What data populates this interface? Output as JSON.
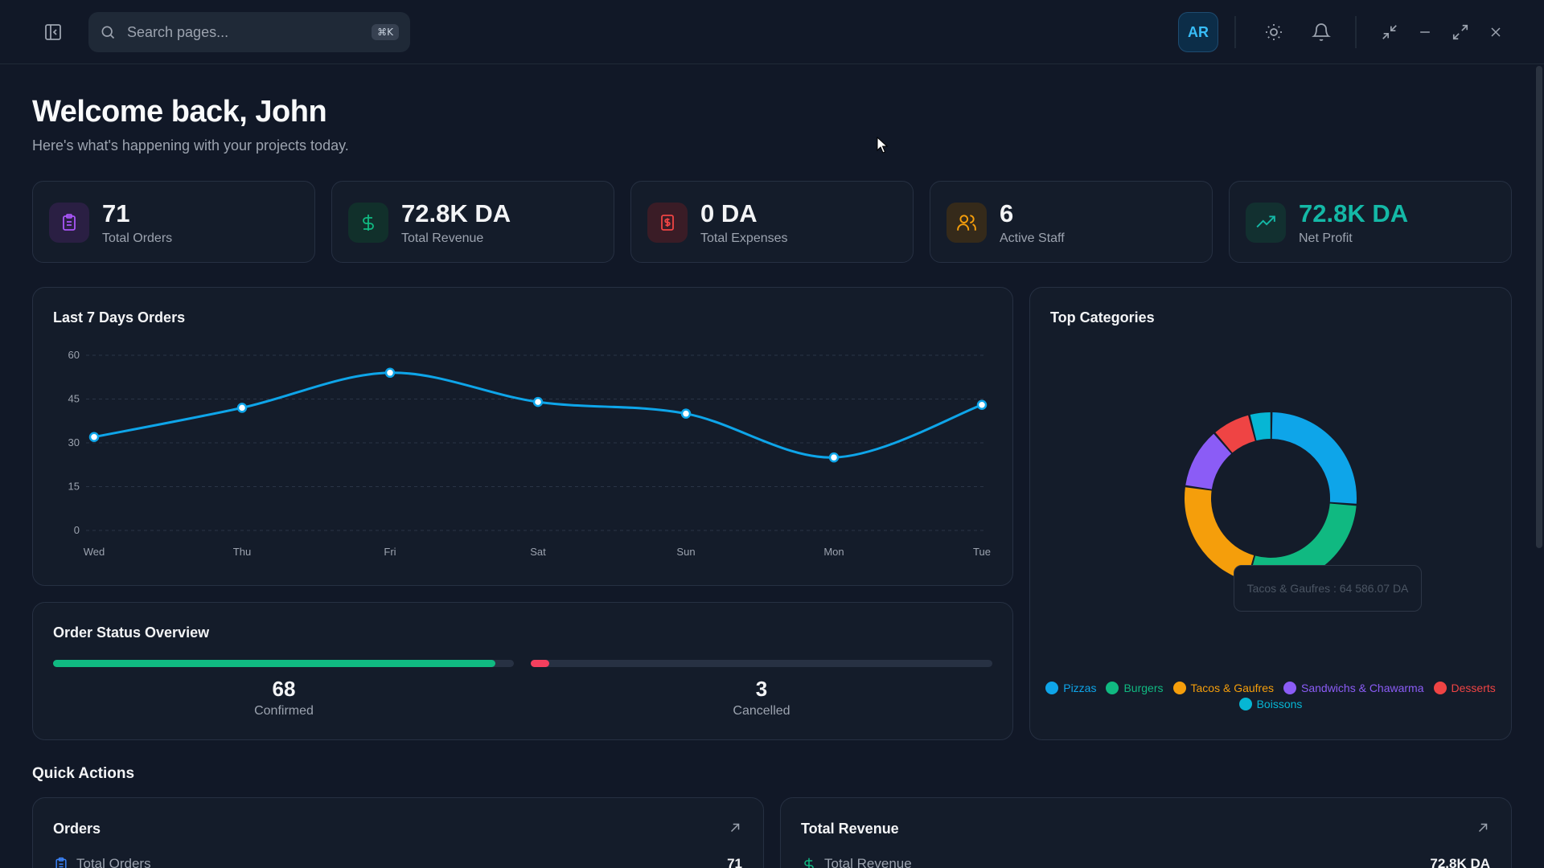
{
  "topbar": {
    "search_placeholder": "Search pages...",
    "search_shortcut": "⌘K",
    "avatar_initials": "AR",
    "icons": [
      "sidebar-toggle-icon",
      "search-icon",
      "sun-icon",
      "bell-icon",
      "minimize-screen-icon",
      "minimize-icon",
      "maximize-icon",
      "close-icon"
    ]
  },
  "header": {
    "title": "Welcome back, John",
    "subtitle": "Here's what's happening with your projects today."
  },
  "stats": [
    {
      "value": "71",
      "label": "Total Orders",
      "icon": "clipboard-icon",
      "color": "#a855f7",
      "bg": "#2a1f43"
    },
    {
      "value": "72.8K DA",
      "label": "Total Revenue",
      "icon": "dollar-icon",
      "color": "#10b981",
      "bg": "#11302b"
    },
    {
      "value": "0 DA",
      "label": "Total Expenses",
      "icon": "receipt-icon",
      "color": "#ef4444",
      "bg": "#3a1c26"
    },
    {
      "value": "6",
      "label": "Active Staff",
      "icon": "users-icon",
      "color": "#f59e0b",
      "bg": "#352a1a"
    },
    {
      "value": "72.8K DA",
      "label": "Net Profit",
      "icon": "trending-up-icon",
      "color": "#14b8a6",
      "bg": "#123030"
    }
  ],
  "orders_chart": {
    "title": "Last 7 Days Orders"
  },
  "chart_data": [
    {
      "type": "line",
      "title": "Last 7 Days Orders",
      "categories": [
        "Wed",
        "Thu",
        "Fri",
        "Sat",
        "Sun",
        "Mon",
        "Tue"
      ],
      "values": [
        32,
        42,
        54,
        44,
        40,
        25,
        43
      ],
      "yticks": [
        0,
        15,
        30,
        45,
        60
      ],
      "ylim": [
        0,
        60
      ],
      "grid": true,
      "color": "#0ea5e9"
    },
    {
      "type": "pie",
      "title": "Top Categories",
      "donut": true,
      "labels": [
        "Pizzas",
        "Burgers",
        "Tacos & Gaufres",
        "Sandwichs & Chawarma",
        "Desserts",
        "Boissons"
      ],
      "values": [
        25,
        27,
        22,
        11,
        7,
        4
      ],
      "colors": [
        "#0ea5e9",
        "#10b981",
        "#f59e0b",
        "#8b5cf6",
        "#ef4444",
        "#06b6d4"
      ],
      "legend": "bottom",
      "tooltip": "Tacos & Gaufres : 64 586.07 DA"
    }
  ],
  "categories_chart": {
    "title": "Top Categories",
    "tooltip": "Tacos & Gaufres : 64 586.07 DA",
    "legend": [
      {
        "label": "Pizzas",
        "color": "#0ea5e9"
      },
      {
        "label": "Burgers",
        "color": "#10b981"
      },
      {
        "label": "Tacos & Gaufres",
        "color": "#f59e0b"
      },
      {
        "label": "Sandwichs & Chawarma",
        "color": "#8b5cf6"
      },
      {
        "label": "Desserts",
        "color": "#ef4444"
      },
      {
        "label": "Boissons",
        "color": "#06b6d4"
      }
    ]
  },
  "order_status": {
    "title": "Order Status Overview",
    "confirmed": {
      "value": "68",
      "label": "Confirmed",
      "fraction": 0.96,
      "color": "#10b981"
    },
    "cancelled": {
      "value": "3",
      "label": "Cancelled",
      "fraction": 0.04,
      "color": "#f43f5e"
    }
  },
  "quick_actions": {
    "title": "Quick Actions",
    "cards": [
      {
        "title": "Orders",
        "row_label": "Total Orders",
        "row_value": "71",
        "row_icon": "clipboard-icon",
        "row_color": "#3b82f6"
      },
      {
        "title": "Total Revenue",
        "row_label": "Total Revenue",
        "row_value": "72.8K DA",
        "row_icon": "dollar-icon",
        "row_color": "#10b981"
      }
    ]
  }
}
